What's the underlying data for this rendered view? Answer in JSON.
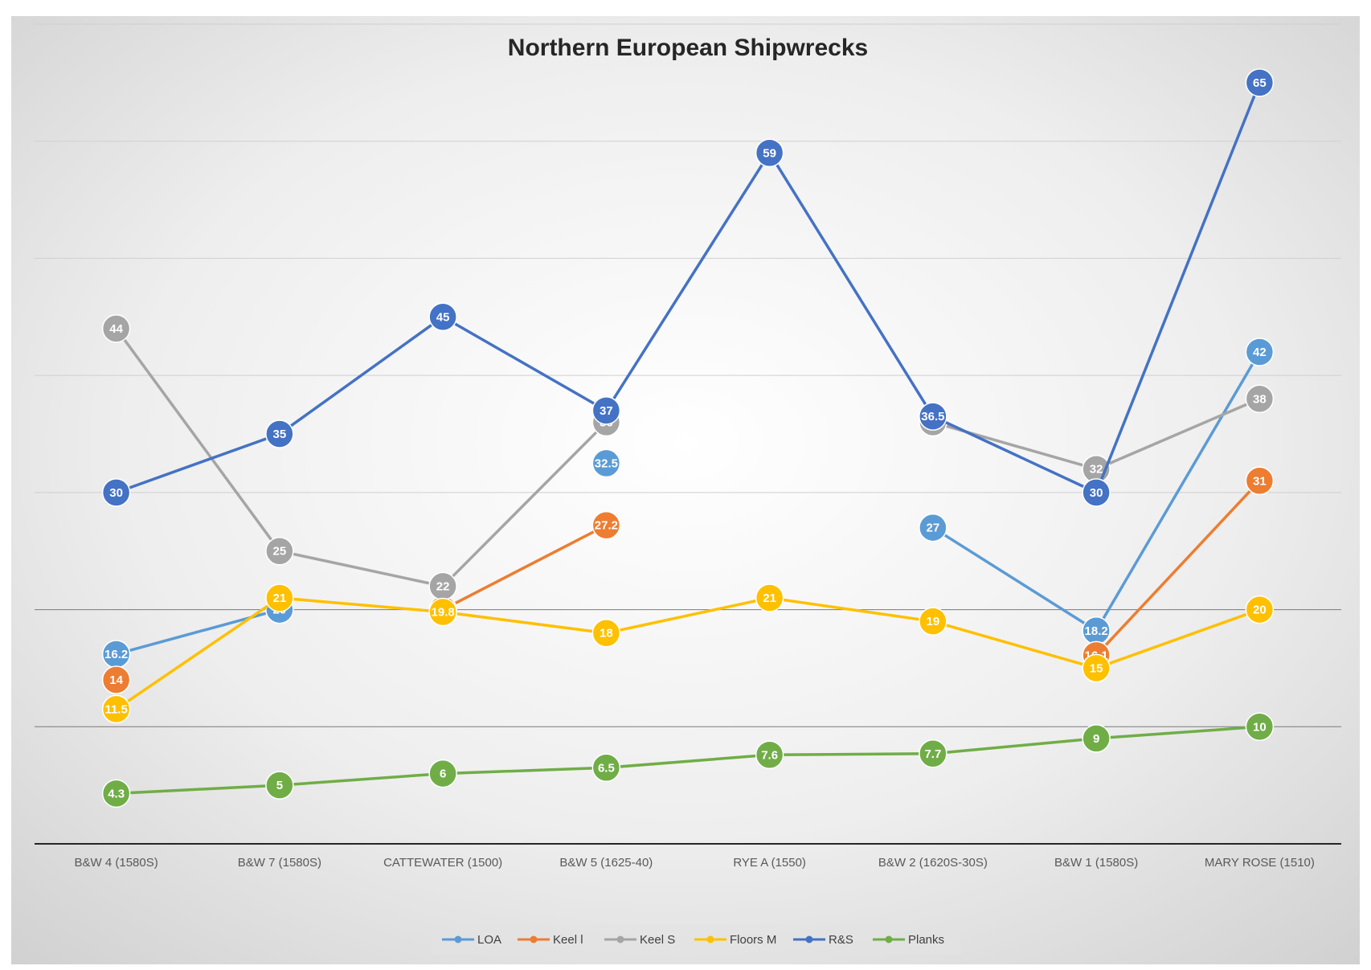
{
  "chart_data": {
    "type": "line",
    "title": "Northern European Shipwrecks",
    "xlabel": "",
    "ylabel": "",
    "ylim": [
      0,
      70
    ],
    "grid": true,
    "legend_position": "bottom",
    "categories": [
      "B&W 4 (1580S)",
      "B&W 7 (1580S)",
      "CATTEWATER (1500)",
      "B&W 5 (1625-40)",
      "RYE A (1550)",
      "B&W 2 (1620S-30S)",
      "B&W 1 (1580S)",
      "MARY ROSE (1510)"
    ],
    "series": [
      {
        "name": "LOA",
        "color": "#5b9bd5",
        "values": [
          16.2,
          20,
          null,
          32.5,
          null,
          27,
          18.2,
          42
        ]
      },
      {
        "name": "Keel l",
        "color": "#ed7d31",
        "values": [
          14,
          null,
          20,
          27.2,
          null,
          null,
          16.1,
          31
        ]
      },
      {
        "name": "Keel S",
        "color": "#a5a5a5",
        "values": [
          44,
          25,
          22,
          36,
          null,
          36,
          32,
          38
        ]
      },
      {
        "name": "Floors M",
        "color": "#ffc000",
        "values": [
          11.5,
          21,
          19.8,
          18,
          21,
          19,
          15,
          20
        ]
      },
      {
        "name": "R&S",
        "color": "#4472c4",
        "values": [
          30,
          35,
          45,
          37,
          59,
          36.5,
          30,
          65
        ]
      },
      {
        "name": "Planks",
        "color": "#70ad47",
        "values": [
          4.3,
          5,
          6,
          6.5,
          7.6,
          7.7,
          9,
          10
        ]
      }
    ]
  }
}
